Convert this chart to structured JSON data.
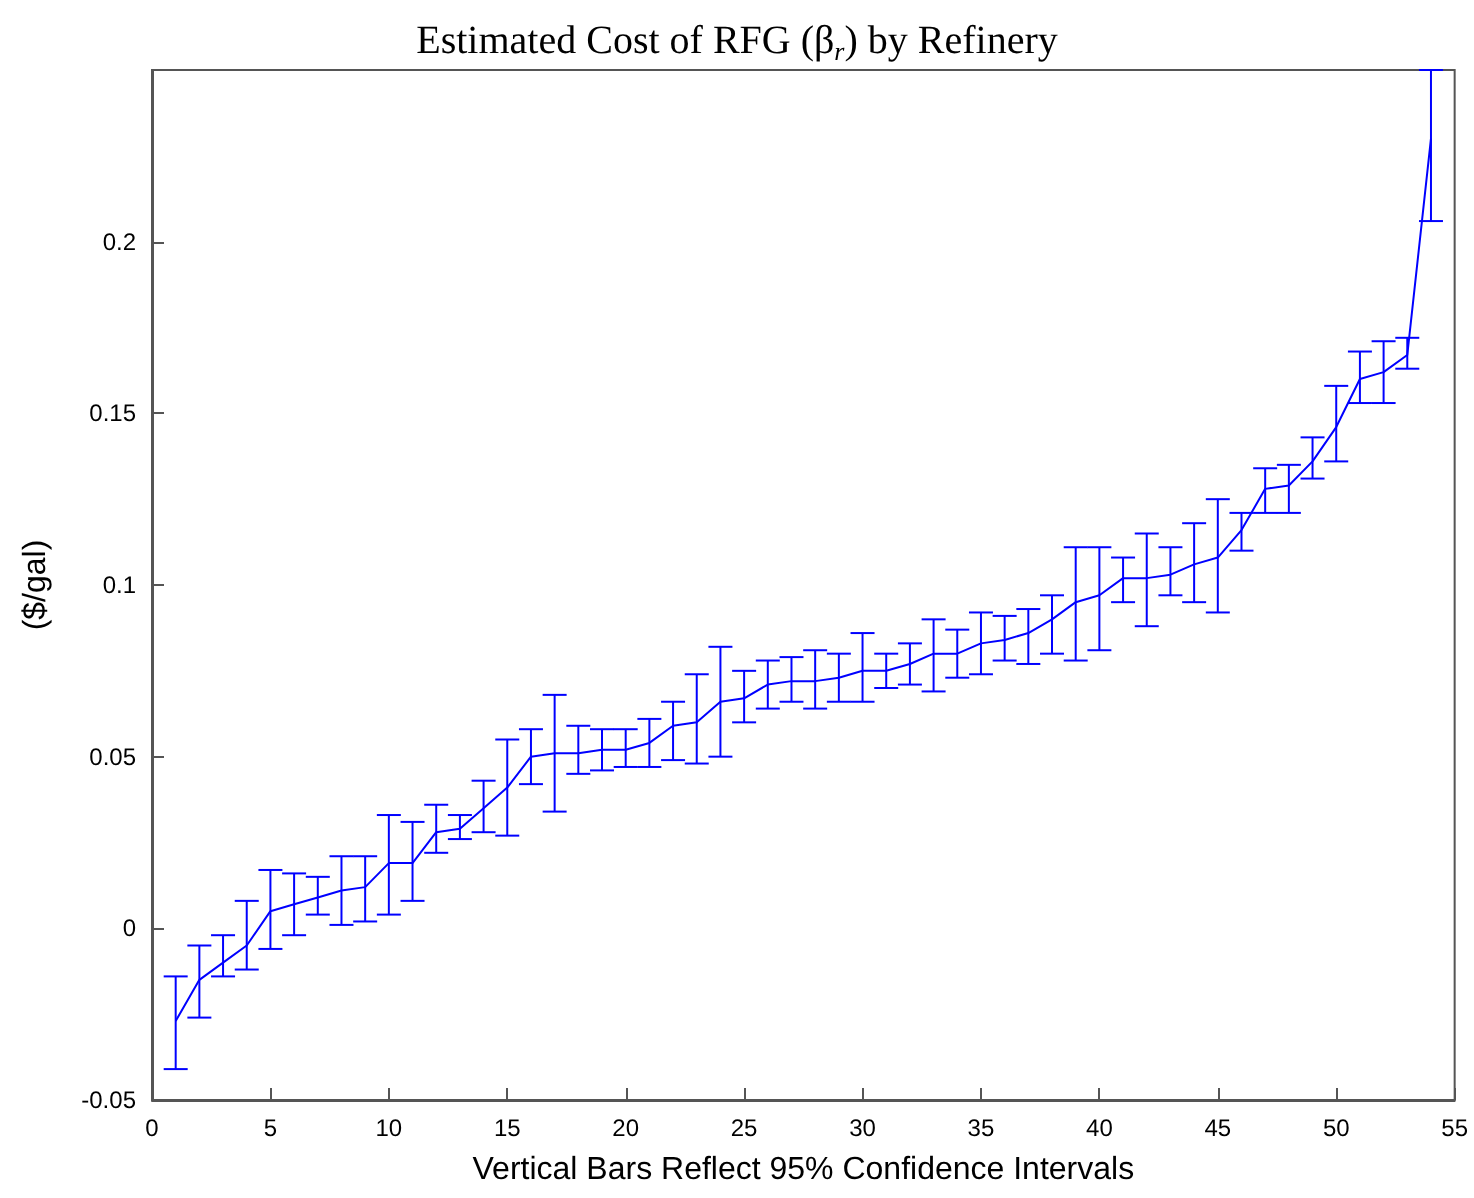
{
  "chart_data": {
    "type": "line",
    "title": "Estimated Cost of RFG (β$_{r}$) by Refinery",
    "xlabel": "Vertical Bars Reflect 95% Confidence Intervals",
    "ylabel": "($/gal)",
    "x": [
      1,
      2,
      3,
      4,
      5,
      6,
      7,
      8,
      9,
      10,
      11,
      12,
      13,
      14,
      15,
      16,
      17,
      18,
      19,
      20,
      21,
      22,
      23,
      24,
      25,
      26,
      27,
      28,
      29,
      30,
      31,
      32,
      33,
      34,
      35,
      36,
      37,
      38,
      39,
      40,
      41,
      42,
      43,
      44,
      45,
      46,
      47,
      48,
      49,
      50,
      51,
      52,
      53,
      54
    ],
    "series": [
      {
        "color": "#0000ff",
        "marker": "none",
        "line_style": "solid",
        "values": [
          -0.027,
          -0.015,
          -0.01,
          -0.005,
          0.005,
          0.007,
          0.009,
          0.011,
          0.012,
          0.019,
          0.019,
          0.028,
          0.029,
          0.035,
          0.041,
          0.05,
          0.051,
          0.051,
          0.052,
          0.052,
          0.054,
          0.059,
          0.06,
          0.066,
          0.067,
          0.071,
          0.072,
          0.072,
          0.073,
          0.075,
          0.075,
          0.077,
          0.08,
          0.08,
          0.083,
          0.084,
          0.086,
          0.09,
          0.095,
          0.097,
          0.102,
          0.102,
          0.103,
          0.106,
          0.108,
          0.116,
          0.128,
          0.129,
          0.136,
          0.146,
          0.16,
          0.162,
          0.167,
          0.23
        ],
        "errors": [
          [
            -0.041,
            -0.014
          ],
          [
            -0.026,
            -0.005
          ],
          [
            -0.014,
            -0.002
          ],
          [
            -0.012,
            0.008
          ],
          [
            -0.006,
            0.017
          ],
          [
            -0.002,
            0.016
          ],
          [
            0.004,
            0.015
          ],
          [
            0.001,
            0.021
          ],
          [
            0.002,
            0.021
          ],
          [
            0.004,
            0.033
          ],
          [
            0.008,
            0.031
          ],
          [
            0.022,
            0.036
          ],
          [
            0.026,
            0.033
          ],
          [
            0.028,
            0.043
          ],
          [
            0.027,
            0.055
          ],
          [
            0.042,
            0.058
          ],
          [
            0.034,
            0.068
          ],
          [
            0.045,
            0.059
          ],
          [
            0.046,
            0.058
          ],
          [
            0.047,
            0.058
          ],
          [
            0.047,
            0.061
          ],
          [
            0.049,
            0.066
          ],
          [
            0.048,
            0.074
          ],
          [
            0.05,
            0.082
          ],
          [
            0.06,
            0.075
          ],
          [
            0.064,
            0.078
          ],
          [
            0.066,
            0.079
          ],
          [
            0.064,
            0.081
          ],
          [
            0.066,
            0.08
          ],
          [
            0.066,
            0.086
          ],
          [
            0.07,
            0.08
          ],
          [
            0.071,
            0.083
          ],
          [
            0.069,
            0.09
          ],
          [
            0.073,
            0.087
          ],
          [
            0.074,
            0.092
          ],
          [
            0.078,
            0.091
          ],
          [
            0.077,
            0.093
          ],
          [
            0.08,
            0.097
          ],
          [
            0.078,
            0.111
          ],
          [
            0.081,
            0.111
          ],
          [
            0.095,
            0.108
          ],
          [
            0.088,
            0.115
          ],
          [
            0.097,
            0.111
          ],
          [
            0.095,
            0.118
          ],
          [
            0.092,
            0.125
          ],
          [
            0.11,
            0.121
          ],
          [
            0.121,
            0.134
          ],
          [
            0.121,
            0.135
          ],
          [
            0.131,
            0.143
          ],
          [
            0.136,
            0.158
          ],
          [
            0.153,
            0.168
          ],
          [
            0.153,
            0.171
          ],
          [
            0.163,
            0.172
          ],
          [
            0.206,
            0.25
          ]
        ]
      }
    ],
    "xlim": [
      0,
      55
    ],
    "xticks": [
      0,
      5,
      10,
      15,
      20,
      25,
      30,
      35,
      40,
      45,
      50,
      55
    ],
    "ylim": [
      -0.05,
      0.25
    ],
    "yticks": [
      -0.05,
      0,
      0.05,
      0.1,
      0.15,
      0.2
    ]
  }
}
